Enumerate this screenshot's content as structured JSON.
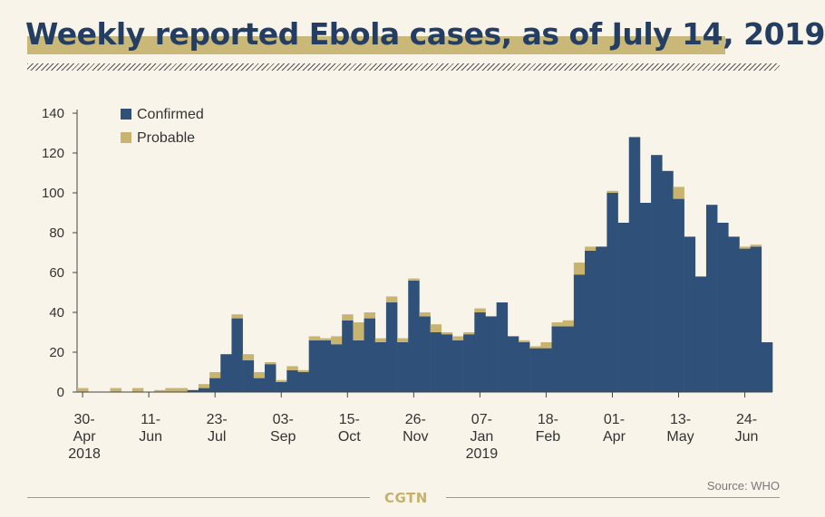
{
  "header": {
    "title": "Weekly reported Ebola cases, as of July 14, 2019"
  },
  "footer": {
    "brand": "CGTN",
    "source": "Source: WHO"
  },
  "colors": {
    "confirmed": "#2e5079",
    "probable": "#c8b46e",
    "title": "#233d63",
    "axis": "#333333"
  },
  "chart_data": {
    "type": "bar",
    "stacked": true,
    "title": "Weekly reported Ebola cases, as of July 14, 2019",
    "xlabel": "",
    "ylabel": "",
    "ylim": [
      0,
      140
    ],
    "yticks": [
      0,
      20,
      40,
      60,
      80,
      100,
      120,
      140
    ],
    "legend": {
      "position": "top-left",
      "entries": [
        "Confirmed",
        "Probable"
      ]
    },
    "week_start": "2018-04-30",
    "xtick_labels": [
      {
        "week": 0,
        "lines": [
          "30-",
          "Apr",
          "2018"
        ]
      },
      {
        "week": 6,
        "lines": [
          "11-",
          "Jun"
        ]
      },
      {
        "week": 12,
        "lines": [
          "23-",
          "Jul"
        ]
      },
      {
        "week": 18,
        "lines": [
          "03-",
          "Sep"
        ]
      },
      {
        "week": 24,
        "lines": [
          "15-",
          "Oct"
        ]
      },
      {
        "week": 30,
        "lines": [
          "26-",
          "Nov"
        ]
      },
      {
        "week": 36,
        "lines": [
          "07-",
          "Jan",
          "2019"
        ]
      },
      {
        "week": 42,
        "lines": [
          "18-",
          "Feb"
        ]
      },
      {
        "week": 48,
        "lines": [
          "01-",
          "Apr"
        ]
      },
      {
        "week": 54,
        "lines": [
          "13-",
          "May"
        ]
      },
      {
        "week": 60,
        "lines": [
          "24-",
          "Jun"
        ]
      }
    ],
    "series": [
      {
        "name": "Confirmed",
        "values": [
          0,
          0,
          0,
          0,
          0,
          0,
          0,
          0,
          0,
          0,
          1,
          2,
          7,
          19,
          37,
          16,
          7,
          14,
          5,
          11,
          10,
          26,
          26,
          24,
          36,
          26,
          37,
          25,
          45,
          25,
          56,
          38,
          30,
          29,
          26,
          29,
          40,
          38,
          45,
          28,
          25,
          22,
          22,
          33,
          33,
          59,
          71,
          73,
          100,
          85,
          128,
          95,
          119,
          111,
          97,
          78,
          58,
          94,
          85,
          78,
          72,
          73,
          25
        ]
      },
      {
        "name": "Probable",
        "values": [
          2,
          0,
          0,
          2,
          0,
          2,
          0,
          1,
          2,
          2,
          0,
          2,
          3,
          0,
          2,
          3,
          3,
          1,
          1,
          2,
          1,
          2,
          1,
          4,
          3,
          9,
          3,
          2,
          3,
          2,
          1,
          2,
          4,
          1,
          2,
          1,
          2,
          0,
          0,
          0,
          1,
          1,
          3,
          2,
          3,
          6,
          2,
          0,
          1,
          0,
          0,
          0,
          0,
          0,
          6,
          0,
          0,
          0,
          0,
          0,
          1,
          1,
          0
        ]
      }
    ]
  }
}
